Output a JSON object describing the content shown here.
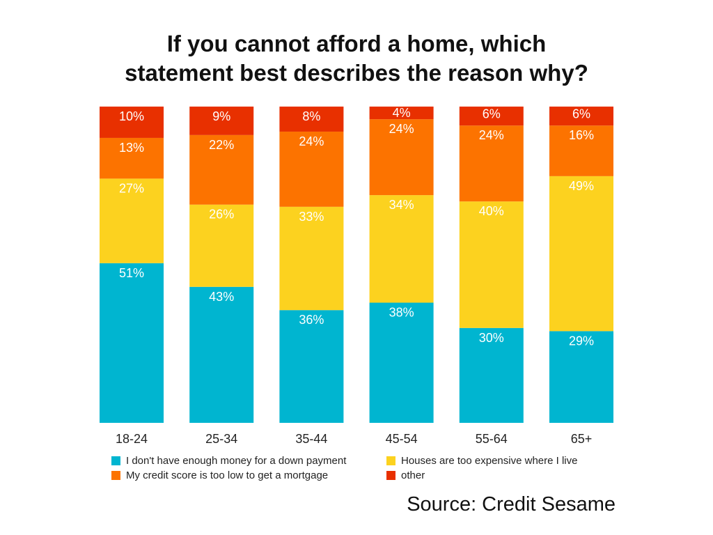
{
  "title_lines": [
    "If you cannot afford a home, which",
    "statement best describes the reason why?"
  ],
  "source": "Source: Credit Sesame",
  "chart_data": {
    "type": "bar",
    "stacked": true,
    "categories": [
      "18-24",
      "25-34",
      "35-44",
      "45-54",
      "55-64",
      "65+"
    ],
    "ylim": [
      0,
      100
    ],
    "grid": false,
    "legend_position": "bottom",
    "series": [
      {
        "name": "I don't have enough money for a down payment",
        "color": "#00B5D0",
        "values": [
          51,
          43,
          36,
          38,
          30,
          29
        ],
        "labels": [
          "51%",
          "43%",
          "36%",
          "38%",
          "30%",
          "29%"
        ]
      },
      {
        "name": "Houses are too expensive where I live",
        "color": "#FCD21F",
        "values": [
          27,
          26,
          33,
          34,
          40,
          49
        ],
        "labels": [
          "27%",
          "26%",
          "33%",
          "34%",
          "40%",
          "49%"
        ]
      },
      {
        "name": "My credit score is too low to get a mortgage",
        "color": "#FC7300",
        "values": [
          13,
          22,
          24,
          24,
          24,
          16
        ],
        "labels": [
          "13%",
          "22%",
          "24%",
          "24%",
          "24%",
          "16%"
        ]
      },
      {
        "name": "other",
        "color": "#E83000",
        "values": [
          10,
          9,
          8,
          4,
          6,
          6
        ],
        "labels": [
          "10%",
          "9%",
          "8%",
          "4%",
          "6%",
          "6%"
        ]
      }
    ]
  },
  "legend": [
    {
      "series": 0
    },
    {
      "series": 1
    },
    {
      "series": 2
    },
    {
      "series": 3
    }
  ]
}
